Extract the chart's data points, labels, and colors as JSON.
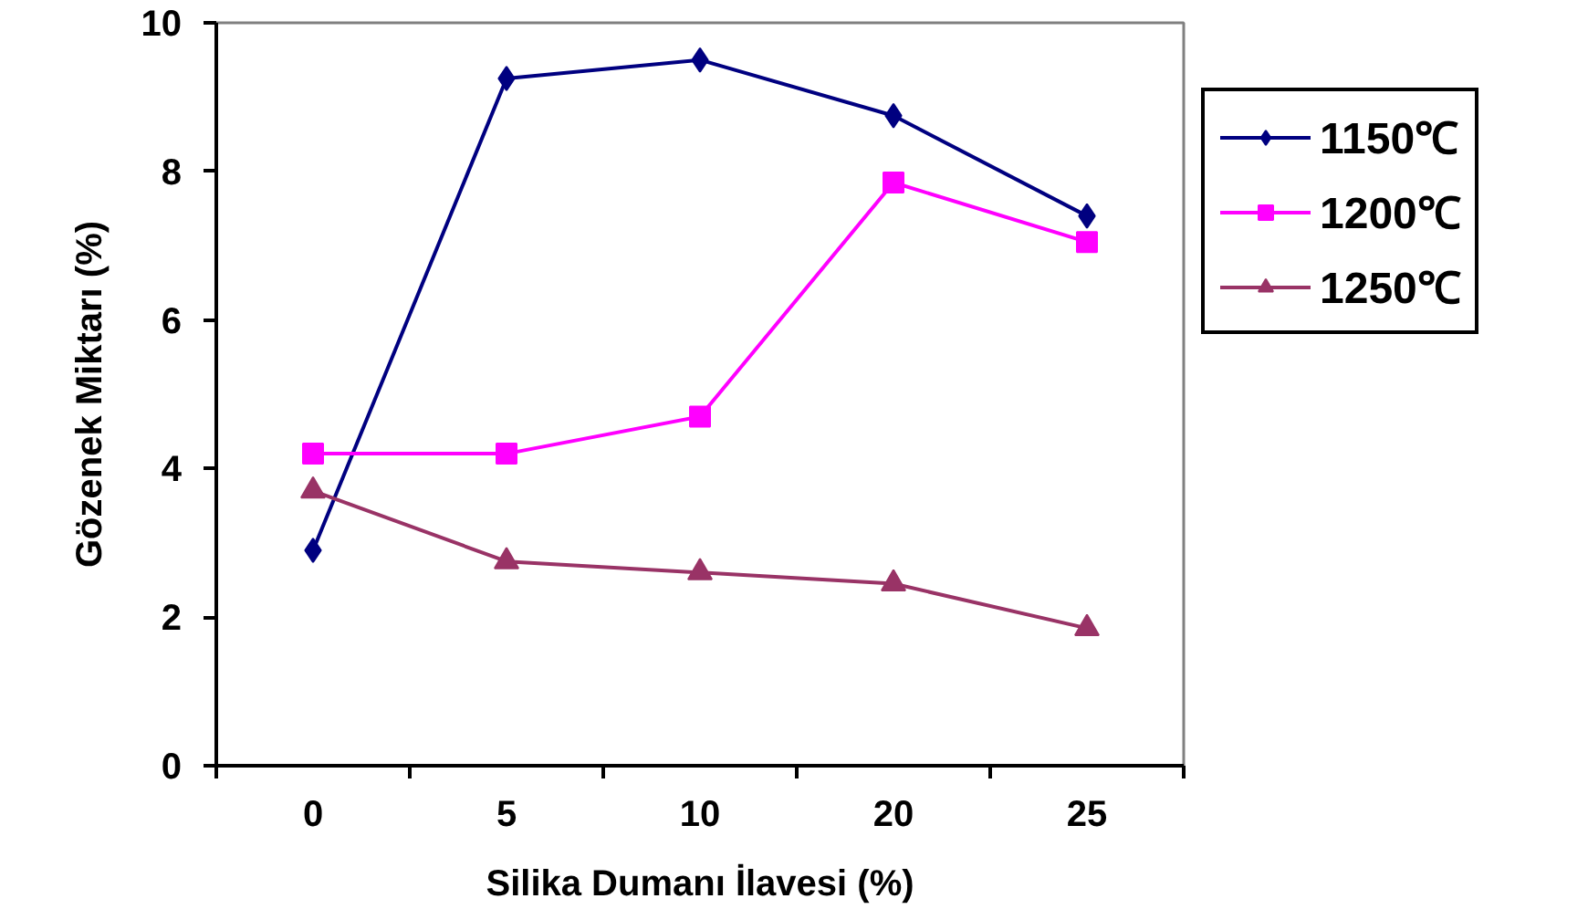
{
  "chart_data": {
    "type": "line",
    "xlabel": "Silika Dumanı İlavesi (%)",
    "ylabel": "Gözenek Miktarı (%)",
    "categories": [
      "0",
      "5",
      "10",
      "20",
      "25"
    ],
    "series": [
      {
        "name": "1150℃",
        "color": "#000080",
        "marker": "diamond",
        "values": [
          2.9,
          9.25,
          9.5,
          8.75,
          7.4
        ]
      },
      {
        "name": "1200℃",
        "color": "#ff00ff",
        "marker": "square",
        "values": [
          4.2,
          4.2,
          4.7,
          7.85,
          7.05
        ]
      },
      {
        "name": "1250℃",
        "color": "#993366",
        "marker": "triangle",
        "values": [
          3.7,
          2.75,
          2.6,
          2.45,
          1.85
        ]
      }
    ],
    "ylim": [
      0,
      10
    ],
    "yticks": [
      0,
      2,
      4,
      6,
      8,
      10
    ],
    "grid": false,
    "legend": "right",
    "line_style": "solid"
  }
}
